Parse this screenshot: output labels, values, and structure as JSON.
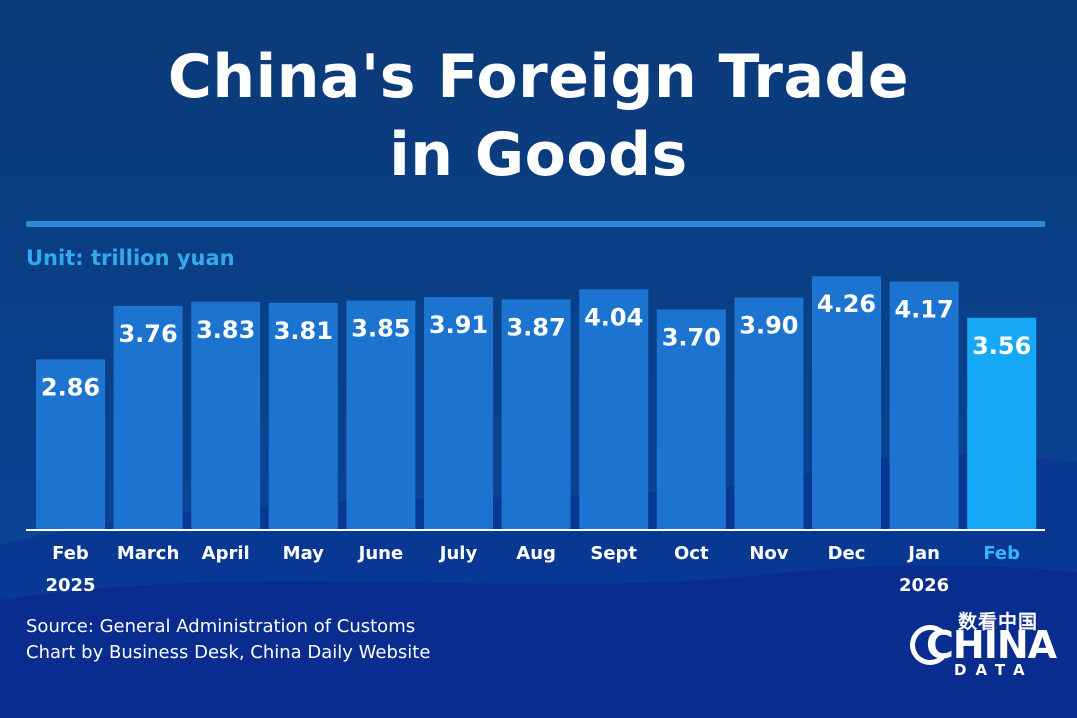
{
  "title_lines": [
    "China's Foreign Trade",
    "in Goods"
  ],
  "unit_label": "Unit: trillion yuan",
  "source_lines": [
    "Source: General Administration of Customs",
    "Chart by Business Desk, China Daily Website"
  ],
  "logo": {
    "top_text": "数看中国",
    "main_text": "CHINA",
    "sub_text": "DATA"
  },
  "colors": {
    "bar": "#1c74d0",
    "bar_highlight": "#14a8f6",
    "background": "#0b3f86",
    "axis": "#ffffff",
    "unit": "#33a9f2",
    "highlight_label": "#35b4ff"
  },
  "chart_data": {
    "type": "bar",
    "title": "China's Foreign Trade in Goods",
    "ylabel": "Unit: trillion yuan",
    "categories": [
      [
        "Feb",
        "2025"
      ],
      [
        "March"
      ],
      [
        "April"
      ],
      [
        "May"
      ],
      [
        "June"
      ],
      [
        "July"
      ],
      [
        "Aug"
      ],
      [
        "Sept"
      ],
      [
        "Oct"
      ],
      [
        "Nov"
      ],
      [
        "Dec"
      ],
      [
        "Jan",
        "2026"
      ],
      [
        "Feb"
      ]
    ],
    "values": [
      2.86,
      3.76,
      3.83,
      3.81,
      3.85,
      3.91,
      3.87,
      4.04,
      3.7,
      3.9,
      4.26,
      4.17,
      3.56
    ],
    "value_labels": [
      "2.86",
      "3.76",
      "3.83",
      "3.81",
      "3.85",
      "3.91",
      "3.87",
      "4.04",
      "3.70",
      "3.90",
      "4.26",
      "4.17",
      "3.56"
    ],
    "highlight_index": 12,
    "ylim": [
      0,
      4.5
    ],
    "grid": false,
    "legend": "none"
  }
}
